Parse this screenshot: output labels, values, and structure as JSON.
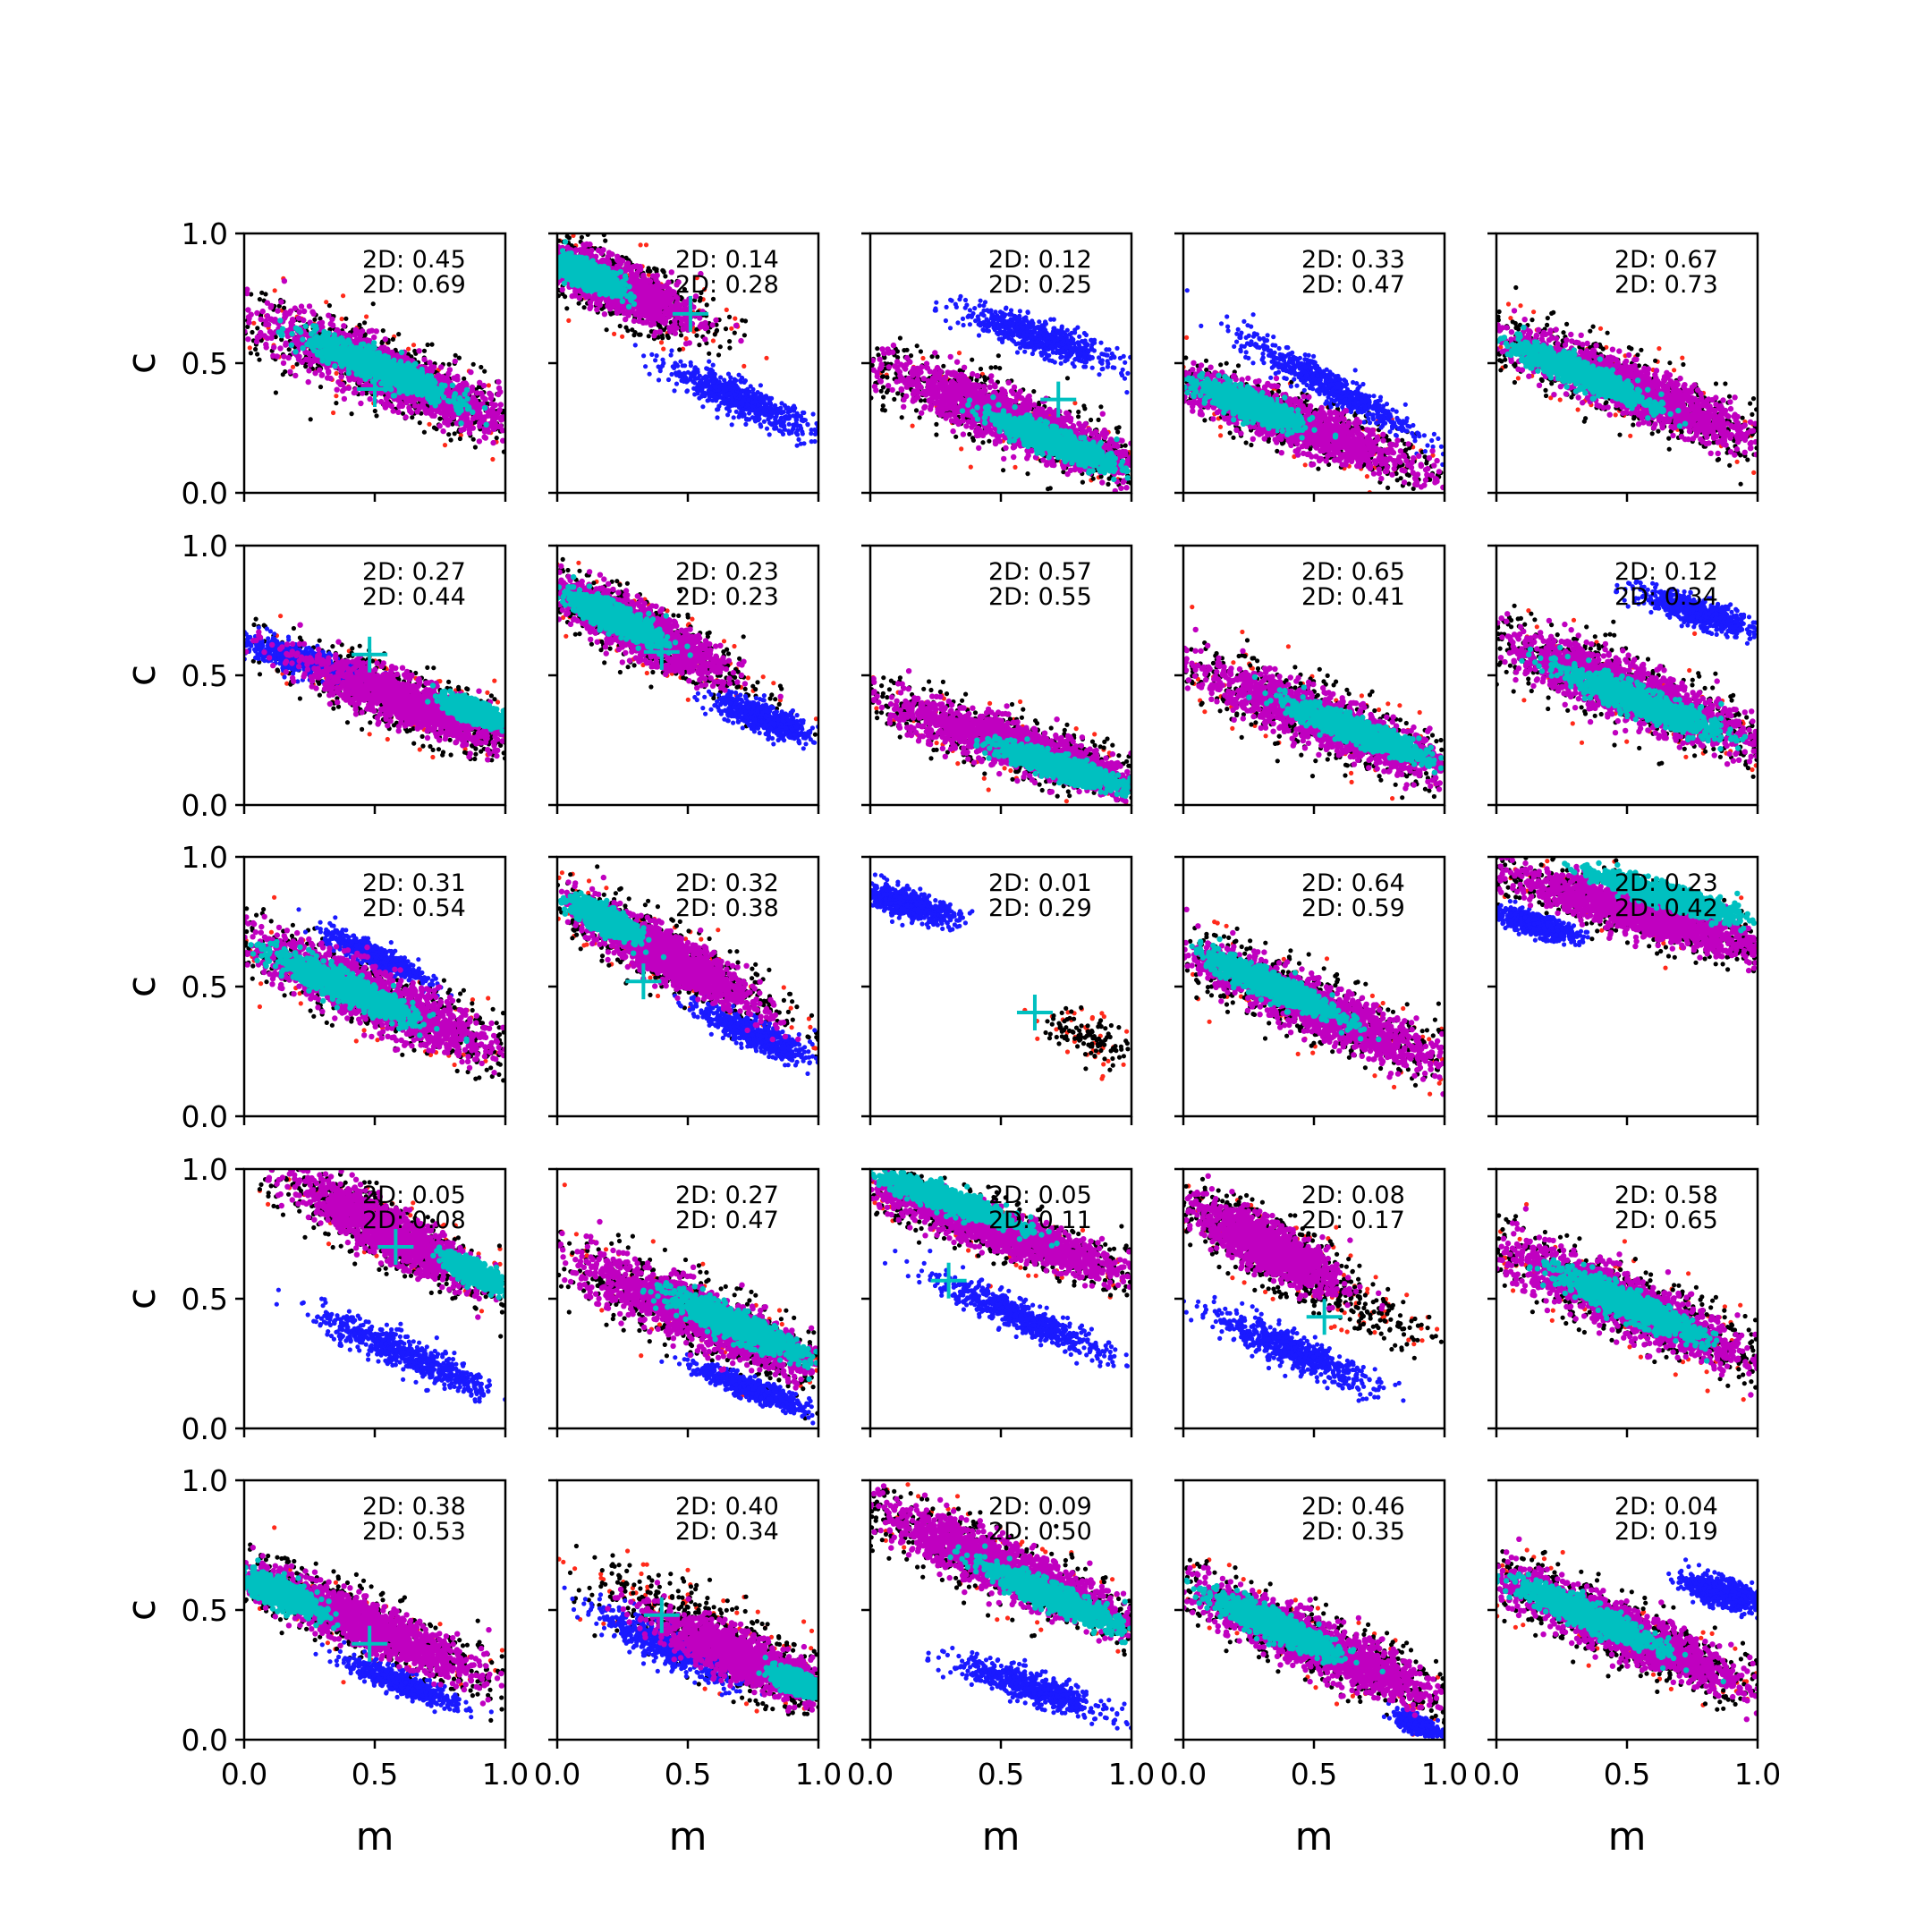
{
  "figure": {
    "x_axis_label": "m",
    "y_axis_label": "c",
    "x_ticks": [
      "0.0",
      "0.5",
      "1.0"
    ],
    "y_ticks": [
      "0.0",
      "0.5",
      "1.0"
    ]
  },
  "colors": {
    "blue": "#1a1aff",
    "black": "#000000",
    "red": "#ff2a1a",
    "magenta": "#c000c0",
    "cyan": "#00c0c0"
  },
  "chart_data": [
    {
      "type": "scatter",
      "panel": "r1c1",
      "xlim": [
        0,
        1
      ],
      "ylim": [
        0,
        1
      ],
      "annotations": [
        "2D: 0.45",
        "2D: 0.69"
      ],
      "clusters": {
        "outer": {
          "cx": 0.55,
          "cy": 0.46,
          "slope": -0.42,
          "len": 0.62,
          "width": 0.12
        },
        "inner": {
          "cx": 0.52,
          "cy": 0.48,
          "slope": -0.42,
          "len": 0.32,
          "width": 0.055
        },
        "blue": null
      },
      "marker": {
        "x": 0.5,
        "y": 0.4
      }
    },
    {
      "type": "scatter",
      "panel": "r1c2",
      "xlim": [
        0,
        1
      ],
      "ylim": [
        0,
        1
      ],
      "annotations": [
        "2D: 0.14",
        "2D: 0.28"
      ],
      "clusters": {
        "outer": {
          "cx": 0.22,
          "cy": 0.8,
          "slope": -0.45,
          "len": 0.36,
          "width": 0.1
        },
        "inner": {
          "cx": 0.12,
          "cy": 0.84,
          "slope": -0.45,
          "len": 0.15,
          "width": 0.05
        },
        "blue": {
          "cx": 0.7,
          "cy": 0.36,
          "slope": -0.45,
          "len": 0.3,
          "width": 0.06
        }
      },
      "marker": {
        "x": 0.51,
        "y": 0.69
      }
    },
    {
      "type": "scatter",
      "panel": "r1c3",
      "xlim": [
        0,
        1
      ],
      "ylim": [
        0,
        1
      ],
      "annotations": [
        "2D: 0.12",
        "2D: 0.25"
      ],
      "clusters": {
        "outer": {
          "cx": 0.55,
          "cy": 0.28,
          "slope": -0.4,
          "len": 0.62,
          "width": 0.11
        },
        "inner": {
          "cx": 0.7,
          "cy": 0.2,
          "slope": -0.4,
          "len": 0.26,
          "width": 0.05
        },
        "blue": {
          "cx": 0.65,
          "cy": 0.6,
          "slope": -0.35,
          "len": 0.3,
          "width": 0.06
        }
      },
      "marker": {
        "x": 0.72,
        "y": 0.36
      }
    },
    {
      "type": "scatter",
      "panel": "r1c4",
      "xlim": [
        0,
        1
      ],
      "ylim": [
        0,
        1
      ],
      "annotations": [
        "2D: 0.33",
        "2D: 0.47"
      ],
      "clusters": {
        "outer": {
          "cx": 0.4,
          "cy": 0.28,
          "slope": -0.38,
          "len": 0.58,
          "width": 0.1
        },
        "inner": {
          "cx": 0.25,
          "cy": 0.34,
          "slope": -0.38,
          "len": 0.22,
          "width": 0.05
        },
        "blue": {
          "cx": 0.55,
          "cy": 0.42,
          "slope": -0.55,
          "len": 0.38,
          "width": 0.055
        }
      },
      "marker": {
        "x": 0.36,
        "y": 0.3
      }
    },
    {
      "type": "scatter",
      "panel": "r1c5",
      "xlim": [
        0,
        1
      ],
      "ylim": [
        0,
        1
      ],
      "annotations": [
        "2D: 0.67",
        "2D: 0.73"
      ],
      "clusters": {
        "outer": {
          "cx": 0.52,
          "cy": 0.4,
          "slope": -0.42,
          "len": 0.62,
          "width": 0.11
        },
        "inner": {
          "cx": 0.32,
          "cy": 0.46,
          "slope": -0.42,
          "len": 0.3,
          "width": 0.05
        },
        "blue": null
      },
      "marker": null
    },
    {
      "type": "scatter",
      "panel": "r2c1",
      "xlim": [
        0,
        1
      ],
      "ylim": [
        0,
        1
      ],
      "annotations": [
        "2D: 0.27",
        "2D: 0.44"
      ],
      "clusters": {
        "outer": {
          "cx": 0.62,
          "cy": 0.4,
          "slope": -0.38,
          "len": 0.5,
          "width": 0.1
        },
        "inner": {
          "cx": 0.88,
          "cy": 0.36,
          "slope": -0.38,
          "len": 0.12,
          "width": 0.04
        },
        "blue": {
          "cx": 0.22,
          "cy": 0.56,
          "slope": -0.3,
          "len": 0.26,
          "width": 0.05
        }
      },
      "marker": {
        "x": 0.48,
        "y": 0.58
      }
    },
    {
      "type": "scatter",
      "panel": "r2c2",
      "xlim": [
        0,
        1
      ],
      "ylim": [
        0,
        1
      ],
      "annotations": [
        "2D: 0.23",
        "2D: 0.23"
      ],
      "clusters": {
        "outer": {
          "cx": 0.3,
          "cy": 0.68,
          "slope": -0.5,
          "len": 0.42,
          "width": 0.1
        },
        "inner": {
          "cx": 0.22,
          "cy": 0.72,
          "slope": -0.5,
          "len": 0.2,
          "width": 0.05
        },
        "blue": {
          "cx": 0.8,
          "cy": 0.33,
          "slope": -0.4,
          "len": 0.2,
          "width": 0.05
        }
      },
      "marker": {
        "x": 0.4,
        "y": 0.59
      }
    },
    {
      "type": "scatter",
      "panel": "r2c3",
      "xlim": [
        0,
        1
      ],
      "ylim": [
        0,
        1
      ],
      "annotations": [
        "2D: 0.57",
        "2D: 0.55"
      ],
      "clusters": {
        "outer": {
          "cx": 0.58,
          "cy": 0.22,
          "slope": -0.33,
          "len": 0.62,
          "width": 0.1
        },
        "inner": {
          "cx": 0.72,
          "cy": 0.15,
          "slope": -0.33,
          "len": 0.26,
          "width": 0.045
        },
        "blue": null
      },
      "marker": null
    },
    {
      "type": "scatter",
      "panel": "r2c4",
      "xlim": [
        0,
        1
      ],
      "ylim": [
        0,
        1
      ],
      "annotations": [
        "2D: 0.65",
        "2D: 0.41"
      ],
      "clusters": {
        "outer": {
          "cx": 0.55,
          "cy": 0.32,
          "slope": -0.4,
          "len": 0.62,
          "width": 0.11
        },
        "inner": {
          "cx": 0.68,
          "cy": 0.28,
          "slope": -0.4,
          "len": 0.3,
          "width": 0.05
        },
        "blue": null
      },
      "marker": null
    },
    {
      "type": "scatter",
      "panel": "r2c5",
      "xlim": [
        0,
        1
      ],
      "ylim": [
        0,
        1
      ],
      "annotations": [
        "2D: 0.12",
        "2D: 0.34"
      ],
      "clusters": {
        "outer": {
          "cx": 0.5,
          "cy": 0.44,
          "slope": -0.4,
          "len": 0.62,
          "width": 0.12
        },
        "inner": {
          "cx": 0.55,
          "cy": 0.4,
          "slope": -0.4,
          "len": 0.34,
          "width": 0.055
        },
        "blue": {
          "cx": 0.78,
          "cy": 0.74,
          "slope": -0.35,
          "len": 0.24,
          "width": 0.05
        }
      },
      "marker": {
        "x": 0.5,
        "y": 0.4
      }
    },
    {
      "type": "scatter",
      "panel": "r3c1",
      "xlim": [
        0,
        1
      ],
      "ylim": [
        0,
        1
      ],
      "annotations": [
        "2D: 0.31",
        "2D: 0.54"
      ],
      "clusters": {
        "outer": {
          "cx": 0.5,
          "cy": 0.46,
          "slope": -0.45,
          "len": 0.62,
          "width": 0.12
        },
        "inner": {
          "cx": 0.38,
          "cy": 0.5,
          "slope": -0.45,
          "len": 0.32,
          "width": 0.055
        },
        "blue": {
          "cx": 0.5,
          "cy": 0.62,
          "slope": -0.45,
          "len": 0.2,
          "width": 0.04
        }
      },
      "marker": null
    },
    {
      "type": "scatter",
      "panel": "r3c2",
      "xlim": [
        0,
        1
      ],
      "ylim": [
        0,
        1
      ],
      "annotations": [
        "2D: 0.32",
        "2D: 0.38"
      ],
      "clusters": {
        "outer": {
          "cx": 0.42,
          "cy": 0.62,
          "slope": -0.55,
          "len": 0.44,
          "width": 0.1
        },
        "inner": {
          "cx": 0.18,
          "cy": 0.76,
          "slope": -0.55,
          "len": 0.14,
          "width": 0.045
        },
        "blue": {
          "cx": 0.75,
          "cy": 0.32,
          "slope": -0.45,
          "len": 0.22,
          "width": 0.05
        }
      },
      "marker": {
        "x": 0.33,
        "y": 0.52
      }
    },
    {
      "type": "scatter",
      "panel": "r3c3",
      "xlim": [
        0,
        1
      ],
      "ylim": [
        0,
        1
      ],
      "annotations": [
        "2D: 0.01",
        "2D: 0.29"
      ],
      "clusters": {
        "outer": null,
        "inner": null,
        "blue": {
          "cx": 0.14,
          "cy": 0.82,
          "slope": -0.3,
          "len": 0.2,
          "width": 0.05
        },
        "sparse": {
          "cx": 0.85,
          "cy": 0.3,
          "slope": -0.4,
          "len": 0.2,
          "width": 0.08
        }
      },
      "marker": {
        "x": 0.63,
        "y": 0.4
      }
    },
    {
      "type": "scatter",
      "panel": "r3c4",
      "xlim": [
        0,
        1
      ],
      "ylim": [
        0,
        1
      ],
      "annotations": [
        "2D: 0.64",
        "2D: 0.59"
      ],
      "clusters": {
        "outer": {
          "cx": 0.5,
          "cy": 0.42,
          "slope": -0.45,
          "len": 0.62,
          "width": 0.11
        },
        "inner": {
          "cx": 0.35,
          "cy": 0.5,
          "slope": -0.45,
          "len": 0.3,
          "width": 0.05
        },
        "blue": null
      },
      "marker": null
    },
    {
      "type": "scatter",
      "panel": "r3c5",
      "xlim": [
        0,
        1
      ],
      "ylim": [
        0,
        1
      ],
      "annotations": [
        "2D: 0.23",
        "2D: 0.42"
      ],
      "clusters": {
        "outer": {
          "cx": 0.55,
          "cy": 0.78,
          "slope": -0.3,
          "len": 0.62,
          "width": 0.09
        },
        "inner": {
          "cx": 0.65,
          "cy": 0.85,
          "slope": -0.3,
          "len": 0.3,
          "width": 0.045
        },
        "blue": {
          "cx": 0.15,
          "cy": 0.74,
          "slope": -0.3,
          "len": 0.16,
          "width": 0.04
        }
      },
      "marker": null
    },
    {
      "type": "scatter",
      "panel": "r4c1",
      "xlim": [
        0,
        1
      ],
      "ylim": [
        0,
        1
      ],
      "annotations": [
        "2D: 0.05",
        "2D: 0.08"
      ],
      "clusters": {
        "outer": {
          "cx": 0.55,
          "cy": 0.76,
          "slope": -0.55,
          "len": 0.44,
          "width": 0.1
        },
        "inner": {
          "cx": 0.88,
          "cy": 0.6,
          "slope": -0.55,
          "len": 0.12,
          "width": 0.04
        },
        "blue": {
          "cx": 0.63,
          "cy": 0.28,
          "slope": -0.45,
          "len": 0.38,
          "width": 0.06
        }
      },
      "marker": {
        "x": 0.58,
        "y": 0.7
      }
    },
    {
      "type": "scatter",
      "panel": "r4c2",
      "xlim": [
        0,
        1
      ],
      "ylim": [
        0,
        1
      ],
      "annotations": [
        "2D: 0.27",
        "2D: 0.47"
      ],
      "clusters": {
        "outer": {
          "cx": 0.55,
          "cy": 0.43,
          "slope": -0.45,
          "len": 0.62,
          "width": 0.12
        },
        "inner": {
          "cx": 0.68,
          "cy": 0.4,
          "slope": -0.45,
          "len": 0.3,
          "width": 0.055
        },
        "blue": {
          "cx": 0.75,
          "cy": 0.15,
          "slope": -0.4,
          "len": 0.22,
          "width": 0.04
        }
      },
      "marker": null
    },
    {
      "type": "scatter",
      "panel": "r4c3",
      "xlim": [
        0,
        1
      ],
      "ylim": [
        0,
        1
      ],
      "annotations": [
        "2D: 0.05",
        "2D: 0.11"
      ],
      "clusters": {
        "outer": {
          "cx": 0.5,
          "cy": 0.76,
          "slope": -0.35,
          "len": 0.62,
          "width": 0.09
        },
        "inner": {
          "cx": 0.3,
          "cy": 0.88,
          "slope": -0.35,
          "len": 0.3,
          "width": 0.045
        },
        "blue": {
          "cx": 0.58,
          "cy": 0.43,
          "slope": -0.45,
          "len": 0.36,
          "width": 0.055
        }
      },
      "marker": {
        "x": 0.3,
        "y": 0.57
      }
    },
    {
      "type": "scatter",
      "panel": "r4c4",
      "xlim": [
        0,
        1
      ],
      "ylim": [
        0,
        1
      ],
      "annotations": [
        "2D: 0.08",
        "2D: 0.17"
      ],
      "clusters": {
        "outer": {
          "cx": 0.32,
          "cy": 0.7,
          "slope": -0.55,
          "len": 0.34,
          "width": 0.1
        },
        "inner": null,
        "blue": {
          "cx": 0.42,
          "cy": 0.3,
          "slope": -0.45,
          "len": 0.34,
          "width": 0.06
        },
        "sparse": {
          "cx": 0.7,
          "cy": 0.45,
          "slope": -0.4,
          "len": 0.3,
          "width": 0.09
        }
      },
      "marker": {
        "x": 0.54,
        "y": 0.43
      }
    },
    {
      "type": "scatter",
      "panel": "r4c5",
      "xlim": [
        0,
        1
      ],
      "ylim": [
        0,
        1
      ],
      "annotations": [
        "2D: 0.58",
        "2D: 0.65"
      ],
      "clusters": {
        "outer": {
          "cx": 0.5,
          "cy": 0.48,
          "slope": -0.45,
          "len": 0.62,
          "width": 0.12
        },
        "inner": {
          "cx": 0.5,
          "cy": 0.48,
          "slope": -0.45,
          "len": 0.32,
          "width": 0.055
        },
        "blue": null
      },
      "marker": null
    },
    {
      "type": "scatter",
      "panel": "r5c1",
      "xlim": [
        0,
        1
      ],
      "ylim": [
        0,
        1
      ],
      "annotations": [
        "2D: 0.38",
        "2D: 0.53"
      ],
      "clusters": {
        "outer": {
          "cx": 0.45,
          "cy": 0.45,
          "slope": -0.45,
          "len": 0.58,
          "width": 0.1
        },
        "inner": {
          "cx": 0.15,
          "cy": 0.56,
          "slope": -0.45,
          "len": 0.16,
          "width": 0.05
        },
        "blue": {
          "cx": 0.6,
          "cy": 0.22,
          "slope": -0.4,
          "len": 0.22,
          "width": 0.04
        }
      },
      "marker": {
        "x": 0.48,
        "y": 0.37
      }
    },
    {
      "type": "scatter",
      "panel": "r5c2",
      "xlim": [
        0,
        1
      ],
      "ylim": [
        0,
        1
      ],
      "annotations": [
        "2D: 0.40",
        "2D: 0.34"
      ],
      "clusters": {
        "outer": {
          "cx": 0.7,
          "cy": 0.32,
          "slope": -0.45,
          "len": 0.42,
          "width": 0.1
        },
        "inner": {
          "cx": 0.92,
          "cy": 0.22,
          "slope": -0.45,
          "len": 0.1,
          "width": 0.04
        },
        "blue": {
          "cx": 0.42,
          "cy": 0.36,
          "slope": -0.5,
          "len": 0.3,
          "width": 0.06
        },
        "sparse": {
          "cx": 0.4,
          "cy": 0.55,
          "slope": -0.3,
          "len": 0.4,
          "width": 0.12
        }
      },
      "marker": {
        "x": 0.4,
        "y": 0.48
      }
    },
    {
      "type": "scatter",
      "panel": "r5c3",
      "xlim": [
        0,
        1
      ],
      "ylim": [
        0,
        1
      ],
      "annotations": [
        "2D: 0.09",
        "2D: 0.50"
      ],
      "clusters": {
        "outer": {
          "cx": 0.5,
          "cy": 0.67,
          "slope": -0.45,
          "len": 0.62,
          "width": 0.11
        },
        "inner": {
          "cx": 0.7,
          "cy": 0.55,
          "slope": -0.45,
          "len": 0.3,
          "width": 0.05
        },
        "blue": {
          "cx": 0.62,
          "cy": 0.2,
          "slope": -0.35,
          "len": 0.3,
          "width": 0.055
        }
      },
      "marker": null
    },
    {
      "type": "scatter",
      "panel": "r5c4",
      "xlim": [
        0,
        1
      ],
      "ylim": [
        0,
        1
      ],
      "annotations": [
        "2D: 0.46",
        "2D: 0.35"
      ],
      "clusters": {
        "outer": {
          "cx": 0.52,
          "cy": 0.36,
          "slope": -0.45,
          "len": 0.62,
          "width": 0.11
        },
        "inner": {
          "cx": 0.35,
          "cy": 0.44,
          "slope": -0.45,
          "len": 0.28,
          "width": 0.05
        },
        "blue": {
          "cx": 0.9,
          "cy": 0.06,
          "slope": -0.4,
          "len": 0.08,
          "width": 0.03
        }
      },
      "marker": null
    },
    {
      "type": "scatter",
      "panel": "r5c5",
      "xlim": [
        0,
        1
      ],
      "ylim": [
        0,
        1
      ],
      "annotations": [
        "2D: 0.04",
        "2D: 0.19"
      ],
      "clusters": {
        "outer": {
          "cx": 0.48,
          "cy": 0.42,
          "slope": -0.45,
          "len": 0.62,
          "width": 0.11
        },
        "inner": {
          "cx": 0.35,
          "cy": 0.48,
          "slope": -0.45,
          "len": 0.3,
          "width": 0.05
        },
        "blue": {
          "cx": 0.86,
          "cy": 0.57,
          "slope": -0.3,
          "len": 0.14,
          "width": 0.05
        }
      },
      "marker": null
    }
  ]
}
